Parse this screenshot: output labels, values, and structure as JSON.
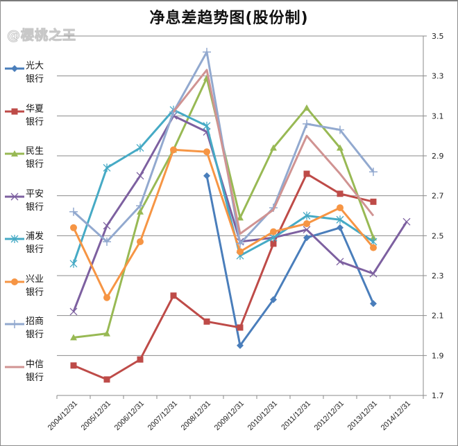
{
  "title": "净息差趋势图(股份制)",
  "watermark": "@樱桃之王",
  "chart_data": {
    "type": "line",
    "title": "净息差趋势图(股份制)",
    "xlabel": "",
    "ylabel": "",
    "ylim": [
      1.7,
      3.5
    ],
    "yticks": [
      "3.5",
      "3.3",
      "3.1",
      "2.9",
      "2.7",
      "2.5",
      "2.3",
      "2.1",
      "1.9",
      "1.7"
    ],
    "y_axis_position": "right",
    "grid": true,
    "legend_position": "left",
    "categories": [
      "2004/12/31",
      "2005/12/31",
      "2006/12/31",
      "2007/12/31",
      "2008/12/31",
      "2009/12/31",
      "2010/12/31",
      "2011/12/31",
      "2012/12/31",
      "2013/12/31",
      "2014/12/31"
    ],
    "series": [
      {
        "name": "光大银行",
        "label_lines": [
          "光大",
          "银行"
        ],
        "color": "#4A7EBB",
        "marker": "diamond",
        "values": [
          null,
          null,
          null,
          null,
          2.8,
          1.95,
          2.18,
          2.49,
          2.54,
          2.16,
          null
        ]
      },
      {
        "name": "华夏银行",
        "label_lines": [
          "华夏",
          "银行"
        ],
        "color": "#BE4B48",
        "marker": "square",
        "values": [
          1.85,
          1.78,
          1.88,
          2.2,
          2.07,
          2.04,
          2.46,
          2.81,
          2.71,
          2.67,
          null
        ]
      },
      {
        "name": "民生银行",
        "label_lines": [
          "民生",
          "银行"
        ],
        "color": "#98B954",
        "marker": "triangle",
        "values": [
          1.99,
          2.01,
          2.62,
          2.93,
          3.29,
          2.59,
          2.94,
          3.14,
          2.94,
          2.49,
          null
        ]
      },
      {
        "name": "平安银行",
        "label_lines": [
          "平安",
          "银行"
        ],
        "color": "#7D60A0",
        "marker": "x",
        "values": [
          2.12,
          2.55,
          2.8,
          3.1,
          3.02,
          2.47,
          2.49,
          2.53,
          2.37,
          2.31,
          2.57
        ]
      },
      {
        "name": "浦发银行",
        "label_lines": [
          "浦发",
          "银行"
        ],
        "color": "#46AAC5",
        "marker": "star",
        "values": [
          2.36,
          2.84,
          2.94,
          3.13,
          3.05,
          2.4,
          2.49,
          2.6,
          2.58,
          2.47,
          null
        ]
      },
      {
        "name": "兴业银行",
        "label_lines": [
          "兴业",
          "银行"
        ],
        "color": "#F69544",
        "marker": "circle",
        "values": [
          2.54,
          2.19,
          2.47,
          2.93,
          2.92,
          2.42,
          2.52,
          2.56,
          2.64,
          2.44,
          null
        ]
      },
      {
        "name": "招商银行",
        "label_lines": [
          "招商",
          "银行"
        ],
        "color": "#92A9CF",
        "marker": "plus",
        "values": [
          2.62,
          2.47,
          2.65,
          3.12,
          3.42,
          2.46,
          2.64,
          3.06,
          3.03,
          2.82,
          null
        ]
      },
      {
        "name": "中信银行",
        "label_lines": [
          "中信",
          "银行"
        ],
        "color": "#D09392",
        "marker": "none",
        "values": [
          null,
          null,
          null,
          3.12,
          3.33,
          2.51,
          2.63,
          3.0,
          2.81,
          2.6,
          null
        ]
      }
    ]
  }
}
